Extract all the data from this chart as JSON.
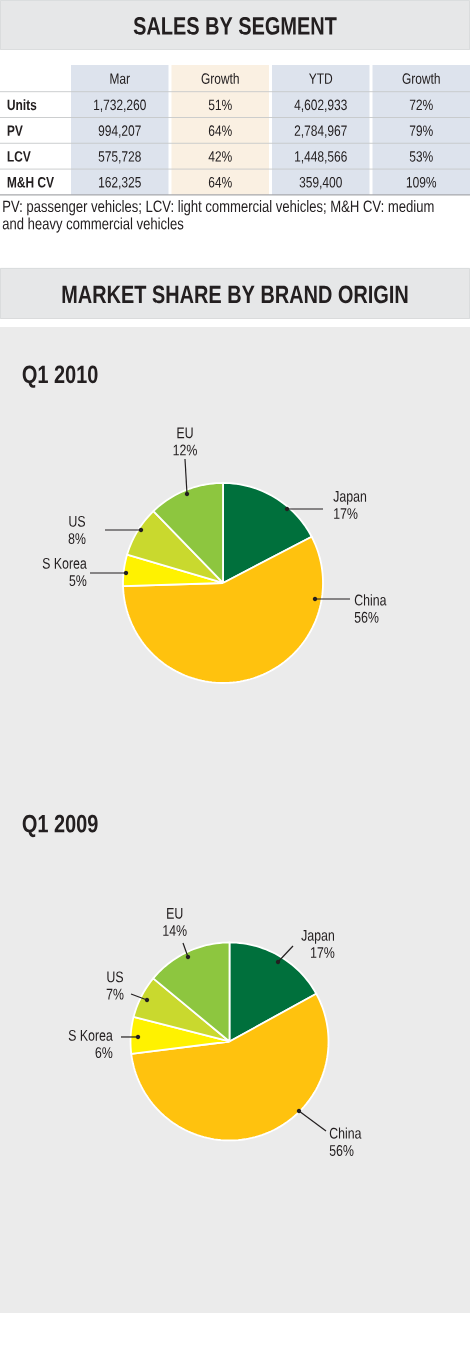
{
  "chart_data": [
    {
      "type": "other",
      "title": "SALES BY SEGMENT",
      "annotations": [
        "Mar",
        "Growth",
        "YTD",
        "Growth",
        "Units",
        "1,732,260",
        "51%",
        "4,602,933",
        "72%",
        "PV",
        "994,207",
        "64%",
        "2,784,967",
        "79%",
        "LCV",
        "575,728",
        "42%",
        "1,448,566",
        "53%",
        "M&H CV",
        "162,325",
        "64%",
        "359,400",
        "109%",
        "PV: passenger vehicles; LCV: light commercial vehicles; M&H CV: medium and heavy commercial vehicles"
      ]
    },
    {
      "type": "pie",
      "title": "MARKET SHARE BY BRAND ORIGIN",
      "subtitle": "Q1 2010",
      "categories": [
        "Japan",
        "China",
        "S Korea",
        "US",
        "EU"
      ],
      "values": [
        17,
        56,
        5,
        8,
        12
      ],
      "value_labels": [
        "17%",
        "56%",
        "5%",
        "8%",
        "12%"
      ],
      "colors": [
        "#00703c",
        "#ffc20e",
        "#fff200",
        "#c9d92e",
        "#8dc63f"
      ]
    },
    {
      "type": "pie",
      "title": "Q1 2009",
      "categories": [
        "Japan",
        "China",
        "S Korea",
        "US",
        "EU"
      ],
      "values": [
        17,
        56,
        6,
        7,
        14
      ],
      "value_labels": [
        "17%",
        "56%",
        "6%",
        "7%",
        "14%"
      ],
      "colors": [
        "#00703c",
        "#ffc20e",
        "#fff200",
        "#c9d92e",
        "#8dc63f"
      ]
    }
  ]
}
